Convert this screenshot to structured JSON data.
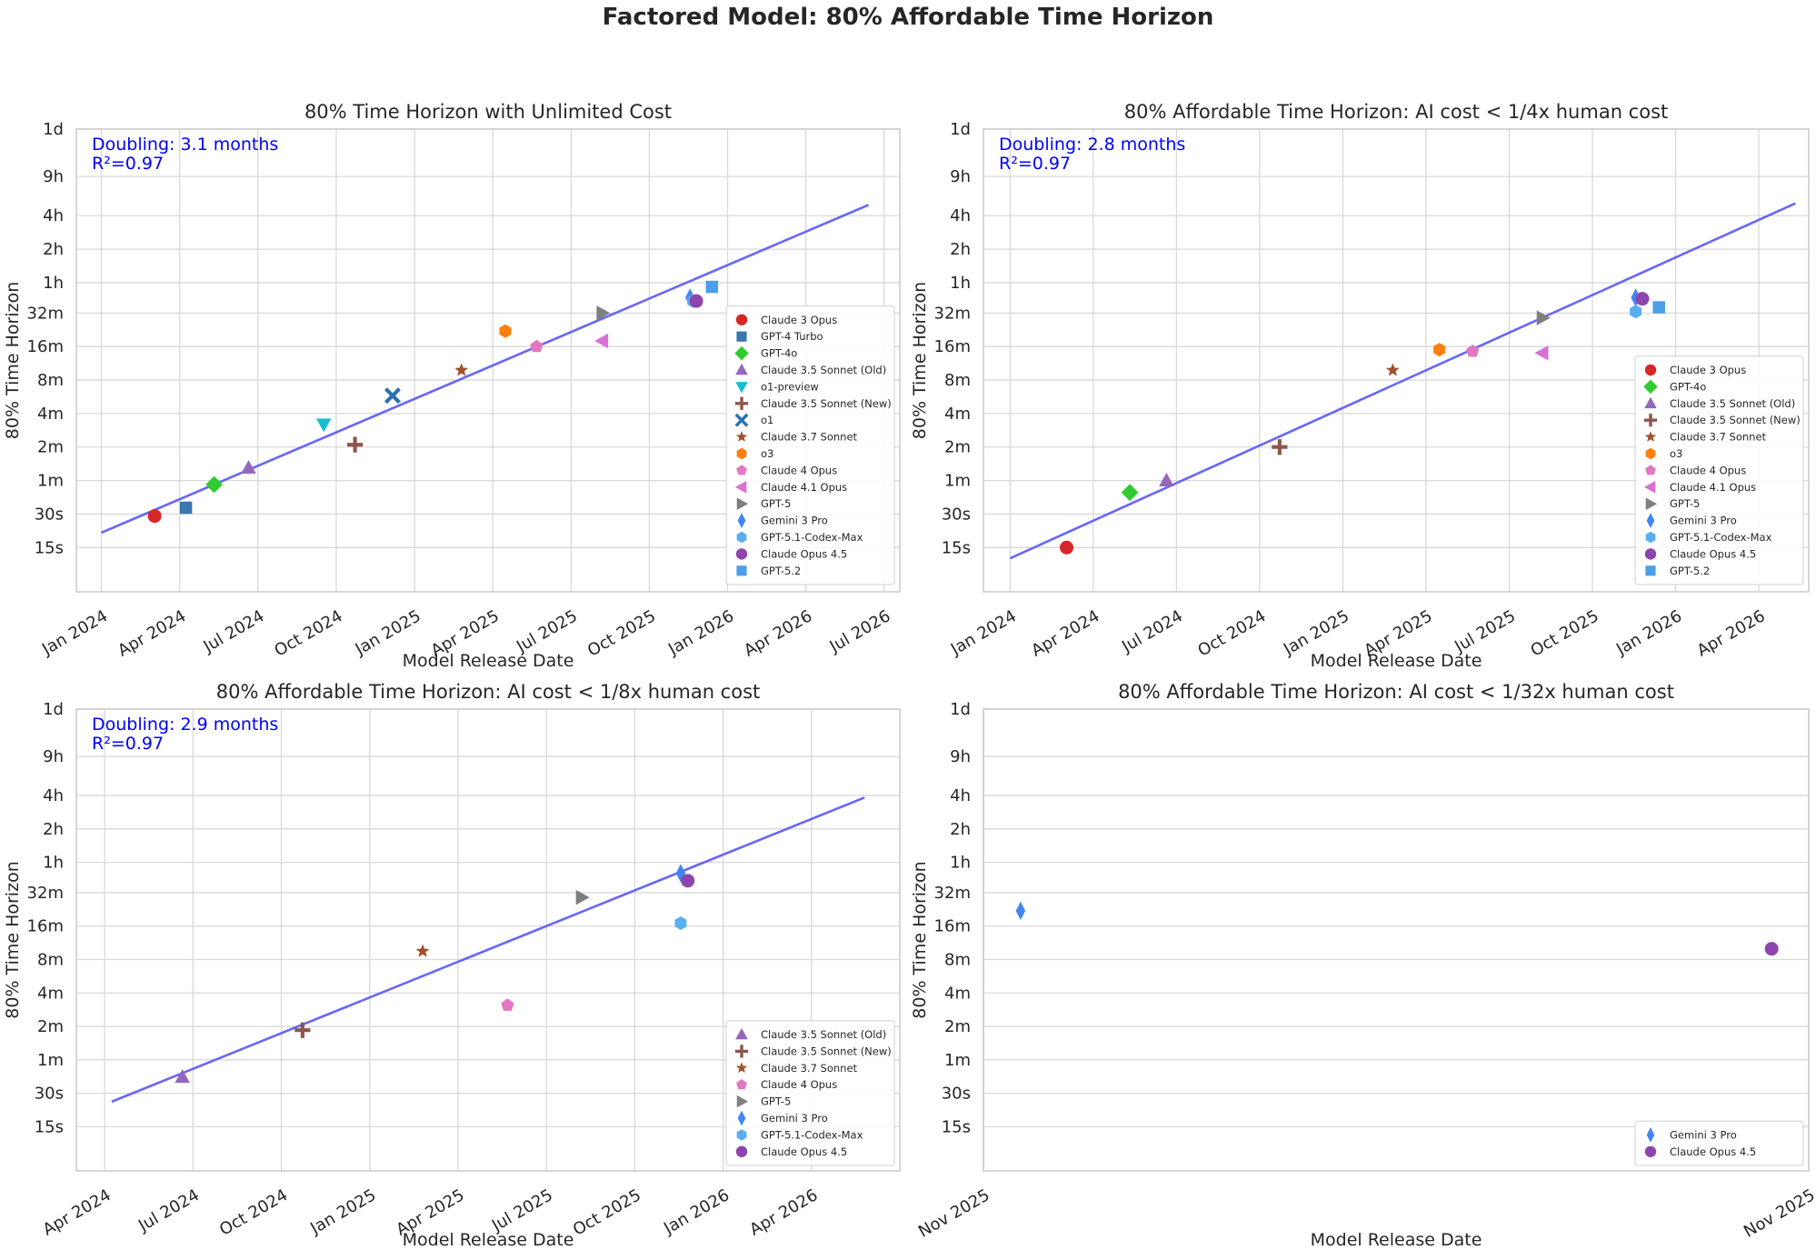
{
  "suptitle": "Factored Model: 80% Affordable Time Horizon",
  "colors": {
    "trend": "#6666ff",
    "grid": "#d9d9d9",
    "annotation": "#0000ff",
    "Claude 3 Opus": "#d62728",
    "GPT-4 Turbo": "#3a76af",
    "GPT-4o": "#2ecc2e",
    "Claude 3.5 Sonnet (Old)": "#9467bd",
    "o1-preview": "#17becf",
    "Claude 3.5 Sonnet (New)": "#8c564b",
    "o1": "#2a6faf",
    "Claude 3.7 Sonnet": "#a0522d",
    "o3": "#ff7f0e",
    "Claude 4 Opus": "#e377c2",
    "Claude 4.1 Opus": "#da70d6",
    "GPT-5": "#7f7f7f",
    "Gemini 3 Pro": "#4285f4",
    "GPT-5.1-Codex-Max": "#5aaef0",
    "Claude Opus 4.5": "#8e44ad",
    "GPT-5.2": "#4a9fe8"
  },
  "markers": {
    "Claude 3 Opus": "circle-icon",
    "GPT-4 Turbo": "square-icon",
    "GPT-4o": "diamond-icon",
    "Claude 3.5 Sonnet (Old)": "triangle-up-icon",
    "o1-preview": "triangle-down-icon",
    "Claude 3.5 Sonnet (New)": "plus-icon",
    "o1": "x-icon",
    "Claude 3.7 Sonnet": "star-icon",
    "o3": "hexagon-icon",
    "Claude 4 Opus": "pentagon-icon",
    "Claude 4.1 Opus": "triangle-left-icon",
    "GPT-5": "triangle-right-icon",
    "Gemini 3 Pro": "thin-diamond-icon",
    "GPT-5.1-Codex-Max": "hexagon-icon",
    "Claude Opus 4.5": "circle-icon",
    "GPT-5.2": "square-icon"
  },
  "chart_data": [
    {
      "type": "scatter",
      "title": "80% Time Horizon with Unlimited Cost",
      "xlabel": "Model Release Date",
      "ylabel": "80% Time Horizon",
      "yscale": "log",
      "y_unit": "minutes",
      "x_unit": "years",
      "grid": true,
      "legend_position": "lower-right",
      "xlim": [
        2023.92,
        2026.55
      ],
      "ylim": [
        0.1,
        1440
      ],
      "yticks": [
        {
          "v": 0.25,
          "label": "15s"
        },
        {
          "v": 0.5,
          "label": "30s"
        },
        {
          "v": 1,
          "label": "1m"
        },
        {
          "v": 2,
          "label": "2m"
        },
        {
          "v": 4,
          "label": "4m"
        },
        {
          "v": 8,
          "label": "8m"
        },
        {
          "v": 16,
          "label": "16m"
        },
        {
          "v": 32,
          "label": "32m"
        },
        {
          "v": 60,
          "label": "1h"
        },
        {
          "v": 120,
          "label": "2h"
        },
        {
          "v": 240,
          "label": "4h"
        },
        {
          "v": 540,
          "label": "9h"
        },
        {
          "v": 1440,
          "label": "1d"
        }
      ],
      "xticks": [
        {
          "v": 2024.0,
          "label": "Jan 2024"
        },
        {
          "v": 2024.25,
          "label": "Apr 2024"
        },
        {
          "v": 2024.5,
          "label": "Jul 2024"
        },
        {
          "v": 2024.75,
          "label": "Oct 2024"
        },
        {
          "v": 2025.0,
          "label": "Jan 2025"
        },
        {
          "v": 2025.25,
          "label": "Apr 2025"
        },
        {
          "v": 2025.5,
          "label": "Jul 2025"
        },
        {
          "v": 2025.75,
          "label": "Oct 2025"
        },
        {
          "v": 2026.0,
          "label": "Jan 2026"
        },
        {
          "v": 2026.25,
          "label": "Apr 2026"
        },
        {
          "v": 2026.5,
          "label": "Jul 2026"
        }
      ],
      "annotation": [
        "Doubling: 3.1 months",
        "R²=0.97"
      ],
      "trendline": {
        "x": [
          2024.0,
          2026.45
        ],
        "y": [
          0.34,
          300
        ]
      },
      "points": [
        {
          "model": "Claude 3 Opus",
          "x": 2024.17,
          "y": 0.48
        },
        {
          "model": "GPT-4 Turbo",
          "x": 2024.27,
          "y": 0.57
        },
        {
          "model": "GPT-4o",
          "x": 2024.36,
          "y": 0.92
        },
        {
          "model": "Claude 3.5 Sonnet (Old)",
          "x": 2024.47,
          "y": 1.3
        },
        {
          "model": "o1-preview",
          "x": 2024.71,
          "y": 3.2
        },
        {
          "model": "Claude 3.5 Sonnet (New)",
          "x": 2024.81,
          "y": 2.1
        },
        {
          "model": "o1",
          "x": 2024.93,
          "y": 5.8
        },
        {
          "model": "Claude 3.7 Sonnet",
          "x": 2025.15,
          "y": 9.8
        },
        {
          "model": "o3",
          "x": 2025.29,
          "y": 22
        },
        {
          "model": "Claude 4 Opus",
          "x": 2025.39,
          "y": 16
        },
        {
          "model": "Claude 4.1 Opus",
          "x": 2025.6,
          "y": 18
        },
        {
          "model": "GPT-5",
          "x": 2025.6,
          "y": 32
        },
        {
          "model": "Gemini 3 Pro",
          "x": 2025.88,
          "y": 44
        },
        {
          "model": "GPT-5.1-Codex-Max",
          "x": 2025.89,
          "y": 41
        },
        {
          "model": "Claude Opus 4.5",
          "x": 2025.9,
          "y": 41
        },
        {
          "model": "GPT-5.2",
          "x": 2025.95,
          "y": 55
        }
      ],
      "legend": [
        "Claude 3 Opus",
        "GPT-4 Turbo",
        "GPT-4o",
        "Claude 3.5 Sonnet (Old)",
        "o1-preview",
        "Claude 3.5 Sonnet (New)",
        "o1",
        "Claude 3.7 Sonnet",
        "o3",
        "Claude 4 Opus",
        "Claude 4.1 Opus",
        "GPT-5",
        "Gemini 3 Pro",
        "GPT-5.1-Codex-Max",
        "Claude Opus 4.5",
        "GPT-5.2"
      ]
    },
    {
      "type": "scatter",
      "title": "80% Affordable Time Horizon: AI cost < 1/4x human cost",
      "xlabel": "Model Release Date",
      "ylabel": "80% Time Horizon",
      "yscale": "log",
      "y_unit": "minutes",
      "x_unit": "years",
      "grid": true,
      "legend_position": "lower-right",
      "xlim": [
        2023.92,
        2026.4
      ],
      "ylim": [
        0.1,
        1440
      ],
      "yticks": [
        {
          "v": 0.25,
          "label": "15s"
        },
        {
          "v": 0.5,
          "label": "30s"
        },
        {
          "v": 1,
          "label": "1m"
        },
        {
          "v": 2,
          "label": "2m"
        },
        {
          "v": 4,
          "label": "4m"
        },
        {
          "v": 8,
          "label": "8m"
        },
        {
          "v": 16,
          "label": "16m"
        },
        {
          "v": 32,
          "label": "32m"
        },
        {
          "v": 60,
          "label": "1h"
        },
        {
          "v": 120,
          "label": "2h"
        },
        {
          "v": 240,
          "label": "4h"
        },
        {
          "v": 540,
          "label": "9h"
        },
        {
          "v": 1440,
          "label": "1d"
        }
      ],
      "xticks": [
        {
          "v": 2024.0,
          "label": "Jan 2024"
        },
        {
          "v": 2024.25,
          "label": "Apr 2024"
        },
        {
          "v": 2024.5,
          "label": "Jul 2024"
        },
        {
          "v": 2024.75,
          "label": "Oct 2024"
        },
        {
          "v": 2025.0,
          "label": "Jan 2025"
        },
        {
          "v": 2025.25,
          "label": "Apr 2025"
        },
        {
          "v": 2025.5,
          "label": "Jul 2025"
        },
        {
          "v": 2025.75,
          "label": "Oct 2025"
        },
        {
          "v": 2026.0,
          "label": "Jan 2026"
        },
        {
          "v": 2026.25,
          "label": "Apr 2026"
        }
      ],
      "annotation": [
        "Doubling: 2.8 months",
        "R²=0.97"
      ],
      "trendline": {
        "x": [
          2024.0,
          2026.36
        ],
        "y": [
          0.2,
          310
        ]
      },
      "points": [
        {
          "model": "Claude 3 Opus",
          "x": 2024.17,
          "y": 0.25
        },
        {
          "model": "GPT-4o",
          "x": 2024.36,
          "y": 0.78
        },
        {
          "model": "Claude 3.5 Sonnet (Old)",
          "x": 2024.47,
          "y": 1.0
        },
        {
          "model": "Claude 3.5 Sonnet (New)",
          "x": 2024.81,
          "y": 2.0
        },
        {
          "model": "Claude 3.7 Sonnet",
          "x": 2025.15,
          "y": 9.8
        },
        {
          "model": "o3",
          "x": 2025.29,
          "y": 15
        },
        {
          "model": "Claude 4 Opus",
          "x": 2025.39,
          "y": 14.5
        },
        {
          "model": "Claude 4.1 Opus",
          "x": 2025.6,
          "y": 14
        },
        {
          "model": "GPT-5",
          "x": 2025.6,
          "y": 29
        },
        {
          "model": "Gemini 3 Pro",
          "x": 2025.88,
          "y": 44
        },
        {
          "model": "GPT-5.1-Codex-Max",
          "x": 2025.88,
          "y": 33
        },
        {
          "model": "Claude Opus 4.5",
          "x": 2025.9,
          "y": 43
        },
        {
          "model": "GPT-5.2",
          "x": 2025.95,
          "y": 36
        }
      ],
      "legend": [
        "Claude 3 Opus",
        "GPT-4o",
        "Claude 3.5 Sonnet (Old)",
        "Claude 3.5 Sonnet (New)",
        "Claude 3.7 Sonnet",
        "o3",
        "Claude 4 Opus",
        "Claude 4.1 Opus",
        "GPT-5",
        "Gemini 3 Pro",
        "GPT-5.1-Codex-Max",
        "Claude Opus 4.5",
        "GPT-5.2"
      ]
    },
    {
      "type": "scatter",
      "title": "80% Affordable Time Horizon: AI cost < 1/8x human cost",
      "xlabel": "Model Release Date",
      "ylabel": "80% Time Horizon",
      "yscale": "log",
      "y_unit": "minutes",
      "x_unit": "years",
      "grid": true,
      "legend_position": "lower-right",
      "xlim": [
        2024.17,
        2026.5
      ],
      "ylim": [
        0.1,
        1440
      ],
      "yticks": [
        {
          "v": 0.25,
          "label": "15s"
        },
        {
          "v": 0.5,
          "label": "30s"
        },
        {
          "v": 1,
          "label": "1m"
        },
        {
          "v": 2,
          "label": "2m"
        },
        {
          "v": 4,
          "label": "4m"
        },
        {
          "v": 8,
          "label": "8m"
        },
        {
          "v": 16,
          "label": "16m"
        },
        {
          "v": 32,
          "label": "32m"
        },
        {
          "v": 60,
          "label": "1h"
        },
        {
          "v": 120,
          "label": "2h"
        },
        {
          "v": 240,
          "label": "4h"
        },
        {
          "v": 540,
          "label": "9h"
        },
        {
          "v": 1440,
          "label": "1d"
        }
      ],
      "xticks": [
        {
          "v": 2024.25,
          "label": "Apr 2024"
        },
        {
          "v": 2024.5,
          "label": "Jul 2024"
        },
        {
          "v": 2024.75,
          "label": "Oct 2024"
        },
        {
          "v": 2025.0,
          "label": "Jan 2025"
        },
        {
          "v": 2025.25,
          "label": "Apr 2025"
        },
        {
          "v": 2025.5,
          "label": "Jul 2025"
        },
        {
          "v": 2025.75,
          "label": "Oct 2025"
        },
        {
          "v": 2026.0,
          "label": "Jan 2026"
        },
        {
          "v": 2026.25,
          "label": "Apr 2026"
        }
      ],
      "annotation": [
        "Doubling: 2.9 months",
        "R²=0.97"
      ],
      "trendline": {
        "x": [
          2024.27,
          2026.4
        ],
        "y": [
          0.42,
          230
        ]
      },
      "points": [
        {
          "model": "Claude 3.5 Sonnet (Old)",
          "x": 2024.47,
          "y": 0.7
        },
        {
          "model": "Claude 3.5 Sonnet (New)",
          "x": 2024.81,
          "y": 1.85
        },
        {
          "model": "Claude 3.7 Sonnet",
          "x": 2025.15,
          "y": 9.5
        },
        {
          "model": "Claude 4 Opus",
          "x": 2025.39,
          "y": 3.1
        },
        {
          "model": "GPT-5",
          "x": 2025.6,
          "y": 29
        },
        {
          "model": "Gemini 3 Pro",
          "x": 2025.88,
          "y": 48
        },
        {
          "model": "GPT-5.1-Codex-Max",
          "x": 2025.88,
          "y": 17
        },
        {
          "model": "Claude Opus 4.5",
          "x": 2025.9,
          "y": 41
        }
      ],
      "legend": [
        "Claude 3.5 Sonnet (Old)",
        "Claude 3.5 Sonnet (New)",
        "Claude 3.7 Sonnet",
        "Claude 4 Opus",
        "GPT-5",
        "Gemini 3 Pro",
        "GPT-5.1-Codex-Max",
        "Claude Opus 4.5"
      ]
    },
    {
      "type": "scatter",
      "title": "80% Affordable Time Horizon: AI cost < 1/32x human cost",
      "xlabel": "Model Release Date",
      "ylabel": "80% Time Horizon",
      "yscale": "log",
      "y_unit": "minutes",
      "x_unit": "years",
      "grid": true,
      "legend_position": "lower-right",
      "xlim": [
        0,
        1
      ],
      "ylim": [
        0.1,
        1440
      ],
      "yticks": [
        {
          "v": 0.25,
          "label": "15s"
        },
        {
          "v": 0.5,
          "label": "30s"
        },
        {
          "v": 1,
          "label": "1m"
        },
        {
          "v": 2,
          "label": "2m"
        },
        {
          "v": 4,
          "label": "4m"
        },
        {
          "v": 8,
          "label": "8m"
        },
        {
          "v": 16,
          "label": "16m"
        },
        {
          "v": 32,
          "label": "32m"
        },
        {
          "v": 60,
          "label": "1h"
        },
        {
          "v": 120,
          "label": "2h"
        },
        {
          "v": 240,
          "label": "4h"
        },
        {
          "v": 540,
          "label": "9h"
        },
        {
          "v": 1440,
          "label": "1d"
        }
      ],
      "xticks": [
        {
          "v": 0.0,
          "label": "Nov 2025"
        },
        {
          "v": 1.0,
          "label": "Nov 2025"
        }
      ],
      "annotation": [],
      "trendline": null,
      "points": [
        {
          "model": "Gemini 3 Pro",
          "x": 0.045,
          "y": 22
        },
        {
          "model": "Claude Opus 4.5",
          "x": 0.955,
          "y": 10
        }
      ],
      "legend": [
        "Gemini 3 Pro",
        "Claude Opus 4.5"
      ]
    }
  ]
}
